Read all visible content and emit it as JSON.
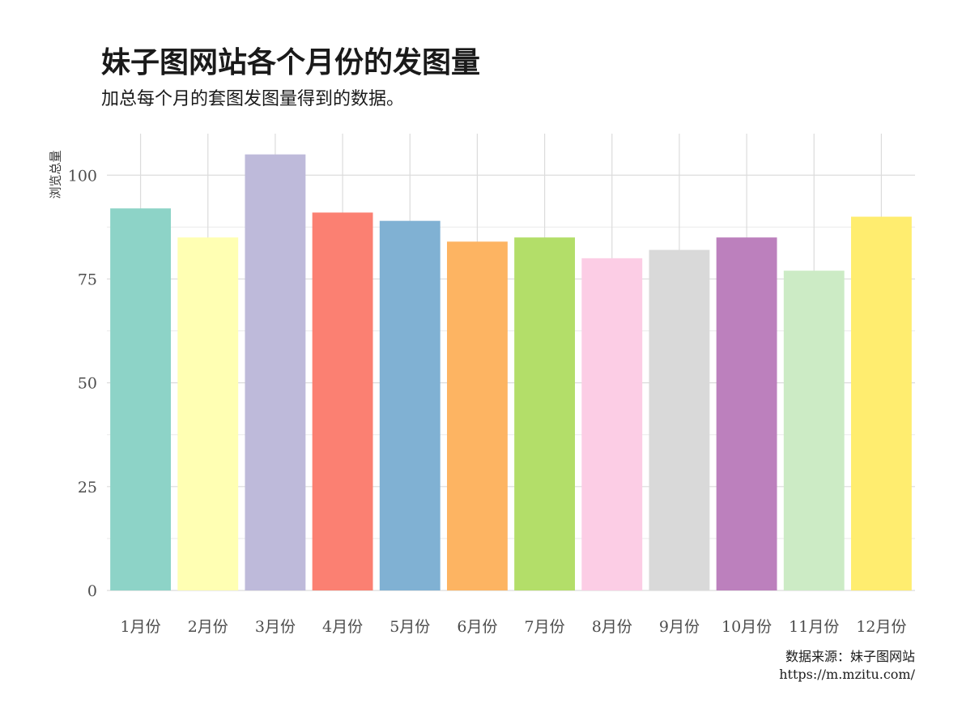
{
  "chart_data": {
    "type": "bar",
    "title": "妹子图网站各个月份的发图量",
    "subtitle": "加总每个月的套图发图量得到的数据。",
    "xlabel": "",
    "ylabel": "浏览总量",
    "caption_lines": [
      "数据来源：妹子图网站",
      "https://m.mzitu.com/"
    ],
    "categories": [
      "1月份",
      "2月份",
      "3月份",
      "4月份",
      "5月份",
      "6月份",
      "7月份",
      "8月份",
      "9月份",
      "10月份",
      "11月份",
      "12月份"
    ],
    "values": [
      92,
      85,
      105,
      91,
      89,
      84,
      85,
      80,
      82,
      85,
      77,
      90
    ],
    "colors": [
      "#8DD3C7",
      "#FFFFB3",
      "#BEBADA",
      "#FB8072",
      "#80B1D3",
      "#FDB462",
      "#B3DE69",
      "#FCCDE5",
      "#D9D9D9",
      "#BC80BD",
      "#CCEBC5",
      "#FFED6F"
    ],
    "ylim": [
      0,
      110
    ],
    "yticks": [
      0,
      25,
      50,
      75,
      100
    ],
    "grid": true,
    "legend": "none"
  }
}
